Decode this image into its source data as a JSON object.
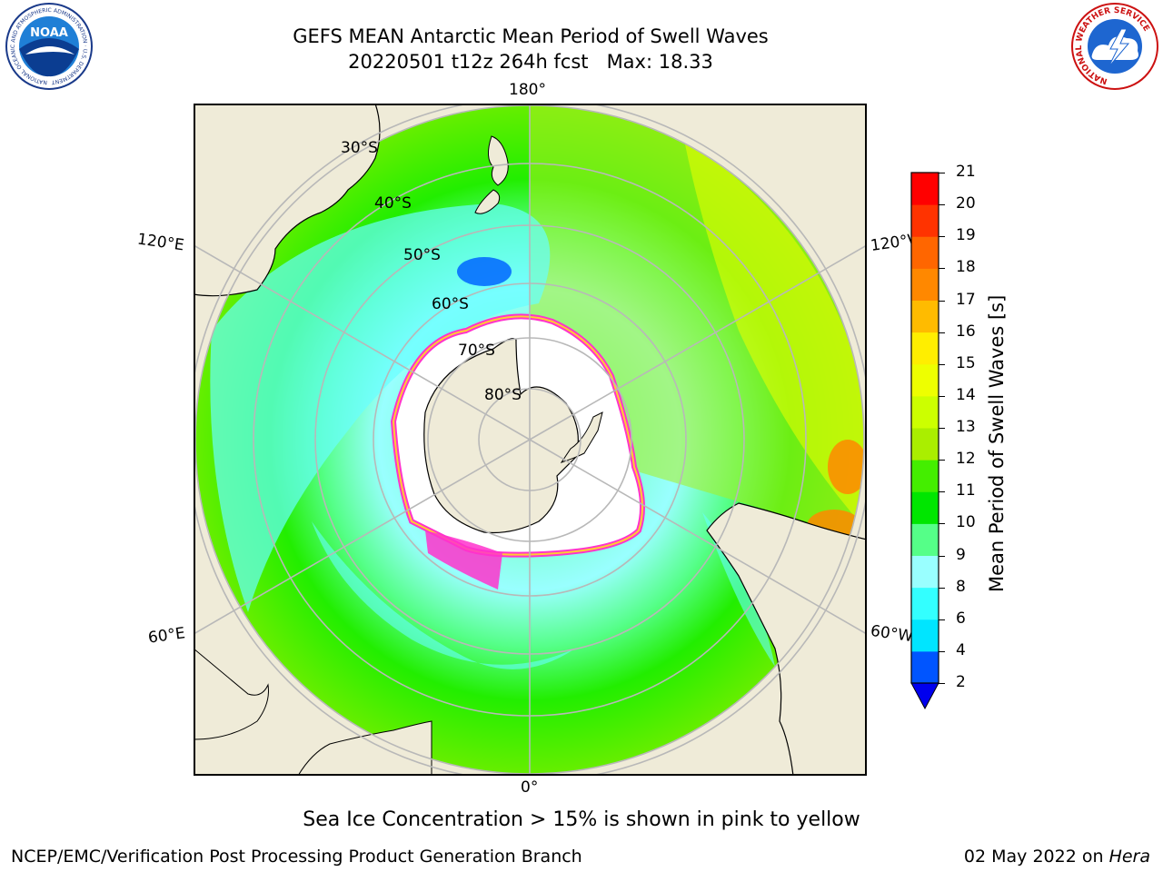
{
  "header": {
    "title_line1": "GEFS MEAN Antarctic Mean Period of Swell Waves",
    "title_line2": "20220501 t12z 264h fcst   Max: 18.33"
  },
  "logos": {
    "left": "noaa-logo",
    "left_ring_text": "NATIONAL OCEANIC AND ATMOSPHERIC ADMINISTRATION · U.S. DEPARTMENT OF COMMERCE",
    "left_center_text": "NOAA",
    "right": "national-weather-service-logo",
    "right_ring_text": "NATIONAL WEATHER SERVICE"
  },
  "map": {
    "longitude_labels": {
      "top": "180°",
      "upper_left": "120°E",
      "upper_right": "120°W",
      "lower_left": "60°E",
      "lower_right": "60°W",
      "bottom": "0°"
    },
    "latitude_labels": [
      "30°S",
      "40°S",
      "50°S",
      "60°S",
      "70°S",
      "80°S"
    ],
    "colors": {
      "land": "#efebd8",
      "frame": "#000000",
      "grid": "#b8b8b8",
      "ice_pink": "#ff33cc",
      "ice_yellow": "#ffcc33"
    }
  },
  "colorbar": {
    "label": "Mean Period of Swell Waves [s]",
    "ticks": [
      "2",
      "4",
      "6",
      "8",
      "9",
      "10",
      "11",
      "12",
      "13",
      "14",
      "15",
      "16",
      "17",
      "18",
      "19",
      "20",
      "21"
    ],
    "colors": [
      "#0055ff",
      "#00e5ff",
      "#33ffff",
      "#99ffff",
      "#55ff88",
      "#00e600",
      "#44ee00",
      "#aaee00",
      "#ccff00",
      "#eeff00",
      "#ffee00",
      "#ffbb00",
      "#ff8800",
      "#ff6600",
      "#ff3300",
      "#ff0000"
    ],
    "extend_color": "#0000ee"
  },
  "ice_note": "Sea Ice Concentration > 15% is shown in pink to yellow",
  "footer": {
    "left": "NCEP/EMC/Verification Post Processing Product Generation Branch",
    "right_prefix": "02 May 2022 on ",
    "right_host": "Hera"
  }
}
